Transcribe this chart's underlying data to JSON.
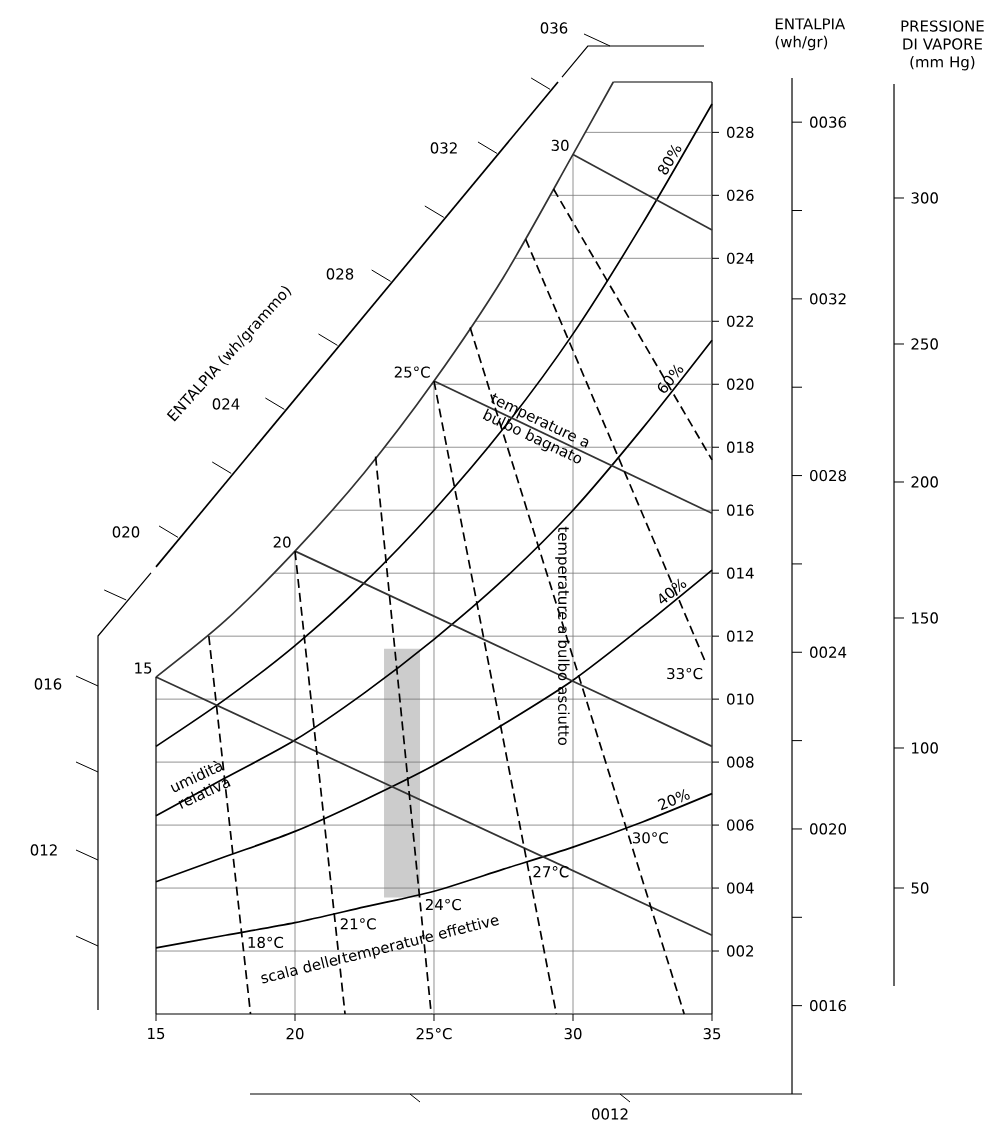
{
  "chart_data": {
    "type": "line",
    "y2label": "ENTALPIA (wh/gr)",
    "annotations": [
      "ENTALPIA (wh/grammo)",
      "036",
      "032",
      "028",
      "024",
      "020",
      "016",
      "012",
      "0012",
      "PRESSIONE DI VAPORE (mm Hg)",
      "300",
      "250",
      "200",
      "150",
      "100",
      "50",
      "temperature a bulbo bagnato",
      "temperature a bulbo asciutto",
      "umidità relativa",
      "scala delle temperature effettive"
    ],
    "xlim": [
      15,
      35
    ],
    "xticks": [
      15,
      20,
      {
        "value": 25,
        "label": "25°C"
      },
      30,
      35
    ],
    "ylim": [
      0,
      29.6
    ],
    "yticks": [
      {
        "value": 2,
        "label": "002"
      },
      {
        "value": 4,
        "label": "004"
      },
      {
        "value": 6,
        "label": "006"
      },
      {
        "value": 8,
        "label": "008"
      },
      {
        "value": 10,
        "label": "010"
      },
      {
        "value": 12,
        "label": "012"
      },
      {
        "value": 14,
        "label": "014"
      },
      {
        "value": 16,
        "label": "016"
      },
      {
        "value": 18,
        "label": "018"
      },
      {
        "value": 20,
        "label": "020"
      },
      {
        "value": 22,
        "label": "022"
      },
      {
        "value": 24,
        "label": "024"
      },
      {
        "value": 26,
        "label": "026"
      },
      {
        "value": 28,
        "label": "028"
      }
    ],
    "y2lim": [
      14,
      37
    ],
    "y2ticks": [
      {
        "value": 16,
        "label": "0016"
      },
      {
        "value": 20,
        "label": "0020"
      },
      {
        "value": 24,
        "label": "0024"
      },
      {
        "value": 28,
        "label": "0028"
      },
      {
        "value": 32,
        "label": "0032"
      },
      {
        "value": 36,
        "label": "0036"
      }
    ],
    "grid": true,
    "series": [
      {
        "x": [
          15,
          17.5,
          20,
          22.5,
          25,
          27.5,
          30,
          31.45
        ],
        "values": [
          10.7,
          12.5,
          14.7,
          17.2,
          20.1,
          23.4,
          27.3,
          29.6
        ],
        "color": "#333333"
      },
      {
        "name": "80%",
        "x": [
          15,
          17.5,
          20,
          22.5,
          25,
          27.5,
          30,
          32.5,
          35
        ],
        "values": [
          8.5,
          10,
          11.7,
          13.7,
          16,
          18.6,
          21.6,
          25.1,
          28.9
        ],
        "color": "#000000"
      },
      {
        "name": "60%",
        "x": [
          15,
          17.5,
          20,
          22.5,
          25,
          27.5,
          30,
          32.5,
          35
        ],
        "values": [
          6.3,
          7.5,
          8.7,
          10.2,
          11.9,
          13.8,
          16,
          18.6,
          21.4
        ],
        "color": "#000000"
      },
      {
        "name": "40%",
        "x": [
          15,
          17.5,
          20,
          22.5,
          25,
          27.5,
          30,
          32.5,
          35
        ],
        "values": [
          4.2,
          5,
          5.8,
          6.8,
          7.9,
          9.2,
          10.6,
          12.3,
          14.1
        ],
        "color": "#000000"
      },
      {
        "name": "20%",
        "x": [
          15,
          17.5,
          20,
          22.5,
          25,
          27.5,
          30,
          32.5,
          35
        ],
        "values": [
          2.1,
          2.5,
          2.9,
          3.4,
          3.9,
          4.6,
          5.3,
          6.1,
          7
        ],
        "color": "#000000"
      },
      {
        "name": "15",
        "x": [
          15,
          35
        ],
        "values": [
          10.7,
          2.5
        ],
        "color": "#333333"
      },
      {
        "name": "20",
        "x": [
          20,
          35
        ],
        "values": [
          14.7,
          8.5
        ],
        "color": "#333333"
      },
      {
        "name": "25°C",
        "x": [
          25,
          35
        ],
        "values": [
          20.1,
          15.9
        ],
        "color": "#333333"
      },
      {
        "name": "30",
        "x": [
          30,
          35
        ],
        "values": [
          27.3,
          24.9
        ],
        "color": "#333333"
      },
      {
        "name": "18°C",
        "x": [
          16.9,
          18.4
        ],
        "values": [
          12,
          0
        ],
        "line_style": "dashed",
        "color": "#000000"
      },
      {
        "name": "21°C",
        "x": [
          20,
          21.8
        ],
        "values": [
          14.7,
          0
        ],
        "line_style": "dashed",
        "color": "#000000"
      },
      {
        "name": "24°C",
        "x": [
          22.9,
          24.9
        ],
        "values": [
          17.7,
          0
        ],
        "line_style": "dashed",
        "color": "#000000"
      },
      {
        "name": "27°C",
        "x": [
          25,
          29.4
        ],
        "values": [
          20.1,
          0
        ],
        "line_style": "dashed",
        "color": "#000000"
      },
      {
        "name": "30°C",
        "x": [
          26.3,
          34
        ],
        "values": [
          21.8,
          0
        ],
        "line_style": "dashed",
        "color": "#000000"
      },
      {
        "name": "33°C",
        "x": [
          28.3,
          34.8
        ],
        "values": [
          24.6,
          11.1
        ],
        "line_style": "dashed",
        "color": "#000000"
      },
      {
        "x": [
          29.3,
          35
        ],
        "values": [
          26.2,
          17.6
        ],
        "line_style": "dashed",
        "color": "#000000"
      },
      {
        "x": [
          15,
          29.46
        ],
        "values": [
          14.2,
          29.6
        ],
        "color": "#000000"
      },
      {
        "type": "bar",
        "x": [
          23.85
        ],
        "base": [
          3.7
        ],
        "values": [
          7.9
        ],
        "color": "#cccccc"
      }
    ]
  }
}
